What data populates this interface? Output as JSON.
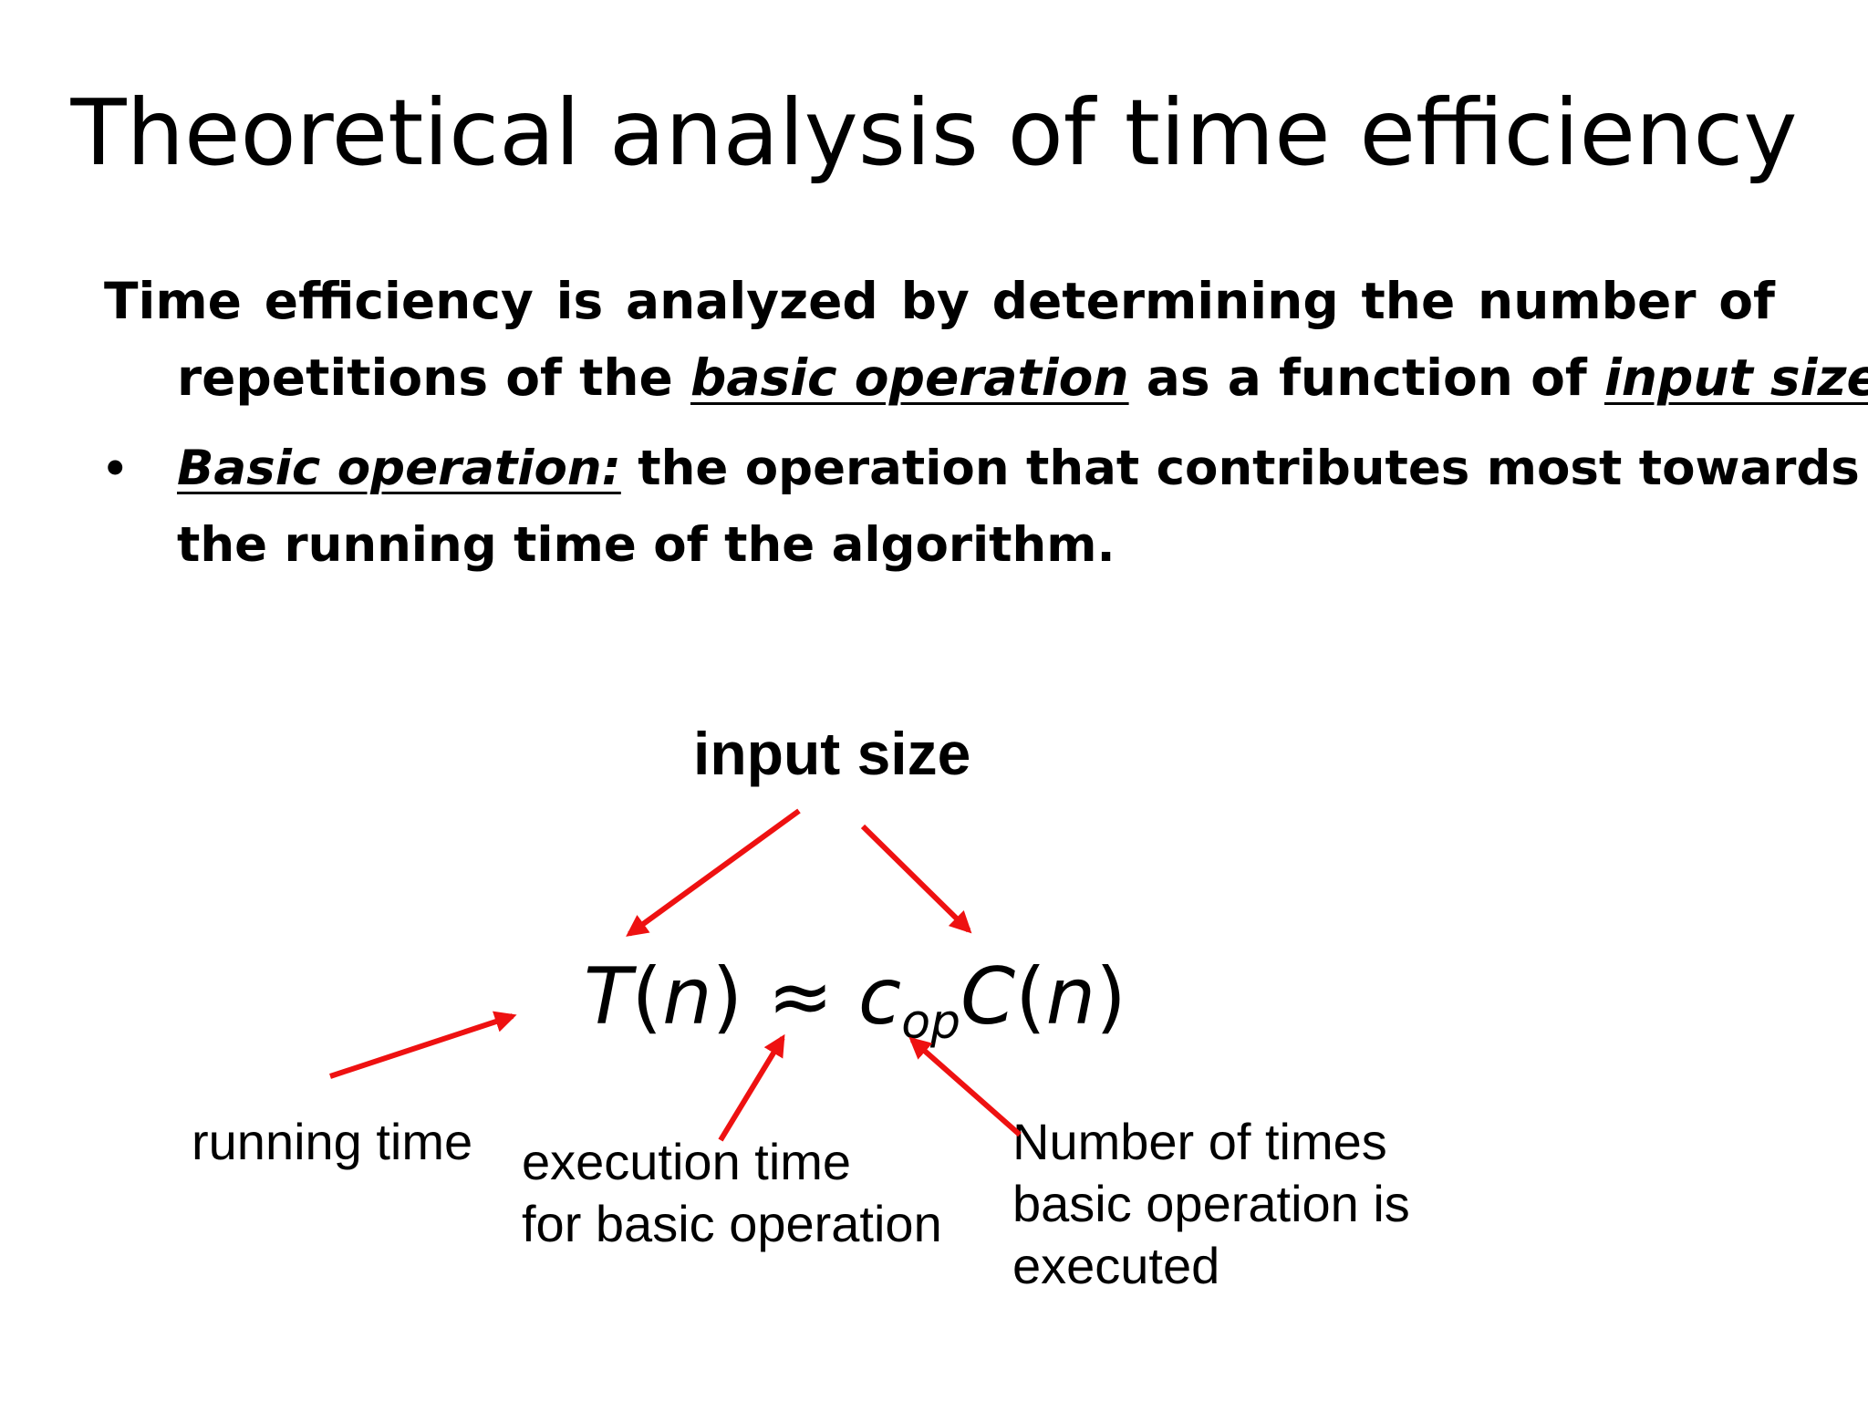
{
  "title": "Theoretical analysis of time efficiency",
  "paragraph": {
    "line1": "Time efficiency is analyzed by determining the number of",
    "line2_before": "repetitions of the ",
    "line2_term1": "basic operation",
    "line2_middle": " as a function of ",
    "line2_term2": "input size"
  },
  "bullet": {
    "marker": "•",
    "term": "Basic operation:",
    "line1_rest": " the operation that contributes most towards",
    "line2": "the running time of the algorithm."
  },
  "diagram": {
    "input_size": "input size",
    "formula": {
      "T": "T",
      "open1": "(",
      "n1": "n",
      "close1": ")",
      "approx": " ≈ ",
      "c": "c",
      "sub": "op",
      "C": "C",
      "open2": "(",
      "n2": "n",
      "close2": ")"
    },
    "running_time": "running time",
    "execution_time_line1": "execution time",
    "execution_time_line2": "for basic operation",
    "number_of_times_line1": "Number of times",
    "number_of_times_line2": "basic operation is",
    "number_of_times_line3": "executed",
    "arrow_color": "#ee1111"
  }
}
